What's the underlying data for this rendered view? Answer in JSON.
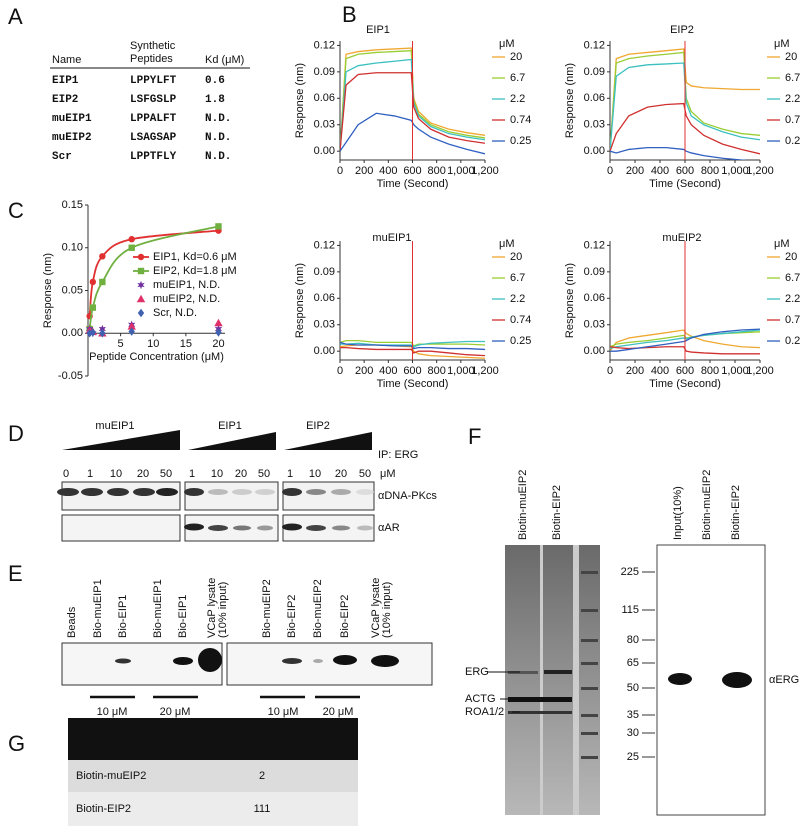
{
  "panel_labels": [
    "A",
    "B",
    "C",
    "D",
    "E",
    "F",
    "G"
  ],
  "table_a": {
    "header": [
      "Name",
      [
        "Synthetic",
        "Peptides"
      ],
      "Kd (μM)"
    ],
    "rows": [
      [
        "EIP1",
        "LPPYLFT",
        "0.6"
      ],
      [
        "EIP2",
        "LSFGSLP",
        "1.8"
      ],
      [
        "muEIP1",
        "LPPALFT",
        "N.D."
      ],
      [
        "muEIP2",
        "LSAGSAP",
        "N.D."
      ],
      [
        "Scr",
        "LPPTFLY",
        "N.D."
      ]
    ],
    "row_colors": [
      "#7030a0",
      "#e0203a",
      "#111111",
      "#111111",
      "#111111"
    ]
  },
  "chart_data": [
    {
      "type": "line",
      "title": "EIP1",
      "xlabel": "Time (Second)",
      "ylabel": "Response (nm)",
      "legend_title": "μM",
      "x": [
        0,
        50,
        150,
        300,
        450,
        590,
        610,
        650,
        750,
        900,
        1050,
        1200
      ],
      "xlim": [
        0,
        1200
      ],
      "xticks": [
        0,
        200,
        400,
        600,
        800,
        {
          "value": 1000,
          "label": "1,000"
        },
        {
          "value": 1200,
          "label": "1,200"
        }
      ],
      "ylim": [
        -0.01,
        0.125
      ],
      "yticks": [
        {
          "value": 0,
          "label": "0.00"
        },
        0.03,
        0.06,
        0.09,
        0.12
      ],
      "vline": 600,
      "vline_color": "#e03030",
      "series": [
        {
          "name": "20",
          "color": "#f0a830",
          "values": [
            0,
            0.11,
            0.113,
            0.115,
            0.116,
            0.117,
            0.06,
            0.045,
            0.032,
            0.025,
            0.021,
            0.018
          ]
        },
        {
          "name": "6.7",
          "color": "#9acd32",
          "values": [
            0,
            0.105,
            0.11,
            0.112,
            0.113,
            0.114,
            0.058,
            0.042,
            0.03,
            0.022,
            0.018,
            0.015
          ]
        },
        {
          "name": "2.2",
          "color": "#3cc0c0",
          "values": [
            0,
            0.09,
            0.097,
            0.1,
            0.102,
            0.104,
            0.055,
            0.04,
            0.028,
            0.02,
            0.016,
            0.013
          ]
        },
        {
          "name": "0.74",
          "color": "#d03030",
          "values": [
            0,
            0.075,
            0.087,
            0.089,
            0.089,
            0.089,
            0.05,
            0.037,
            0.025,
            0.016,
            0.012,
            0.009
          ]
        },
        {
          "name": "0.25",
          "color": "#3060c0",
          "values": [
            0,
            0.01,
            0.03,
            0.043,
            0.04,
            0.035,
            0.03,
            0.025,
            0.016,
            0.008,
            0.002,
            -0.003
          ]
        }
      ]
    },
    {
      "type": "line",
      "title": "EIP2",
      "xlabel": "Time (Second)",
      "ylabel": "Response (nm)",
      "legend_title": "μM",
      "x": [
        0,
        50,
        150,
        300,
        450,
        590,
        610,
        650,
        750,
        900,
        1050,
        1200
      ],
      "xlim": [
        0,
        1200
      ],
      "xticks": [
        0,
        200,
        400,
        600,
        800,
        {
          "value": 1000,
          "label": "1,000"
        },
        {
          "value": 1200,
          "label": "1,200"
        }
      ],
      "ylim": [
        -0.01,
        0.125
      ],
      "yticks": [
        {
          "value": 0,
          "label": "0.00"
        },
        0.03,
        0.06,
        0.09,
        0.12
      ],
      "vline": 600,
      "vline_color": "#e03030",
      "series": [
        {
          "name": "20",
          "color": "#f0a830",
          "values": [
            0,
            0.105,
            0.11,
            0.112,
            0.114,
            0.116,
            0.078,
            0.074,
            0.072,
            0.071,
            0.07,
            0.07
          ]
        },
        {
          "name": "6.7",
          "color": "#9acd32",
          "values": [
            0,
            0.1,
            0.105,
            0.108,
            0.11,
            0.112,
            0.06,
            0.045,
            0.032,
            0.025,
            0.02,
            0.018
          ]
        },
        {
          "name": "2.2",
          "color": "#3cc0c0",
          "values": [
            0,
            0.085,
            0.095,
            0.098,
            0.099,
            0.1,
            0.055,
            0.04,
            0.03,
            0.022,
            0.016,
            0.013
          ]
        },
        {
          "name": "0.74",
          "color": "#d03030",
          "values": [
            0,
            0.02,
            0.04,
            0.05,
            0.053,
            0.054,
            0.04,
            0.03,
            0.018,
            0.008,
            0.002,
            -0.003
          ]
        },
        {
          "name": "0.25",
          "color": "#3060c0",
          "values": [
            0,
            -0.002,
            0.002,
            0.004,
            0.004,
            0.002,
            0,
            -0.002,
            -0.005,
            -0.008,
            -0.01,
            -0.012
          ]
        }
      ]
    },
    {
      "type": "line",
      "title": "muEIP1",
      "xlabel": "Time (Second)",
      "ylabel": "Response (nm)",
      "legend_title": "μM",
      "x": [
        0,
        50,
        150,
        300,
        450,
        590,
        610,
        650,
        750,
        900,
        1050,
        1200
      ],
      "xlim": [
        0,
        1200
      ],
      "xticks": [
        0,
        200,
        400,
        600,
        800,
        {
          "value": 1000,
          "label": "1,000"
        },
        {
          "value": 1200,
          "label": "1,200"
        }
      ],
      "ylim": [
        -0.01,
        0.125
      ],
      "yticks": [
        {
          "value": 0,
          "label": "0.00"
        },
        0.03,
        0.06,
        0.09,
        0.12
      ],
      "vline": 600,
      "vline_color": "#e03030",
      "series": [
        {
          "name": "20",
          "color": "#f0a830",
          "values": [
            0.005,
            0.006,
            0.007,
            0.007,
            0.006,
            0.005,
            0,
            -0.003,
            -0.005,
            -0.006,
            -0.007,
            -0.008
          ]
        },
        {
          "name": "6.7",
          "color": "#9acd32",
          "values": [
            0.01,
            0.012,
            0.012,
            0.01,
            0.01,
            0.01,
            0.006,
            0.008,
            0.008,
            0.008,
            0.008,
            0.007
          ]
        },
        {
          "name": "2.2",
          "color": "#3cc0c0",
          "values": [
            0.008,
            0.008,
            0.009,
            0.007,
            0.007,
            0.007,
            0.005,
            0.007,
            0.009,
            0.01,
            0.011,
            0.011
          ]
        },
        {
          "name": "0.74",
          "color": "#d03030",
          "values": [
            0.004,
            0.004,
            0.003,
            0.002,
            0.002,
            0.002,
            -0.002,
            0,
            0,
            -0.002,
            -0.004,
            -0.005
          ]
        },
        {
          "name": "0.25",
          "color": "#3060c0",
          "values": [
            0.01,
            0.008,
            0.007,
            0.007,
            0.006,
            0.006,
            0.003,
            0.004,
            0.004,
            0.003,
            0.003,
            0.002
          ]
        }
      ]
    },
    {
      "type": "line",
      "title": "muEIP2",
      "xlabel": "Time (Second)",
      "ylabel": "Response (nm)",
      "legend_title": "μM",
      "x": [
        0,
        50,
        150,
        300,
        450,
        590,
        610,
        650,
        750,
        900,
        1050,
        1200
      ],
      "xlim": [
        0,
        1200
      ],
      "xticks": [
        0,
        200,
        400,
        600,
        800,
        {
          "value": 1000,
          "label": "1,000"
        },
        {
          "value": 1200,
          "label": "1,200"
        }
      ],
      "ylim": [
        -0.01,
        0.125
      ],
      "yticks": [
        {
          "value": 0,
          "label": "0.00"
        },
        0.03,
        0.06,
        0.09,
        0.12
      ],
      "vline": 600,
      "vline_color": "#e03030",
      "series": [
        {
          "name": "20",
          "color": "#f0a830",
          "values": [
            0,
            0.01,
            0.015,
            0.018,
            0.021,
            0.024,
            0.02,
            0.017,
            0.012,
            0.008,
            0.005,
            0.004
          ]
        },
        {
          "name": "6.7",
          "color": "#9acd32",
          "values": [
            0.005,
            0.008,
            0.01,
            0.012,
            0.015,
            0.018,
            0.015,
            0.016,
            0.018,
            0.02,
            0.021,
            0.022
          ]
        },
        {
          "name": "2.2",
          "color": "#3cc0c0",
          "values": [
            0.003,
            0.005,
            0.007,
            0.01,
            0.012,
            0.015,
            0.014,
            0.016,
            0.018,
            0.02,
            0.022,
            0.024
          ]
        },
        {
          "name": "0.74",
          "color": "#d03030",
          "values": [
            0.005,
            0.004,
            0.003,
            0.004,
            0.005,
            0.005,
            0,
            -0.001,
            -0.002,
            -0.003,
            -0.003,
            -0.003
          ]
        },
        {
          "name": "0.25",
          "color": "#3060c0",
          "values": [
            0,
            0,
            0.002,
            0.005,
            0.008,
            0.011,
            0.012,
            0.015,
            0.019,
            0.022,
            0.024,
            0.025
          ]
        }
      ]
    },
    {
      "type": "scatter",
      "xlabel": "Peptide Concentration (μM)",
      "ylabel": "Response (nm)",
      "x": [
        0.25,
        0.74,
        2.2,
        6.7,
        20
      ],
      "xlim": [
        0,
        21
      ],
      "xticks": [
        5,
        10,
        15,
        20
      ],
      "ylim": [
        -0.05,
        0.15
      ],
      "yticks": [
        -0.05,
        {
          "value": 0,
          "label": "0.00"
        },
        0.05,
        {
          "value": 0.1,
          "label": "0.10"
        },
        0.15
      ],
      "series": [
        {
          "name": "EIP1, Kd=0.6 μM",
          "color": "#e03030",
          "marker": "circle",
          "line": true,
          "values": [
            0.02,
            0.06,
            0.09,
            0.11,
            0.12
          ]
        },
        {
          "name": "EIP2, Kd=1.8 μM",
          "color": "#70b040",
          "marker": "square",
          "line": true,
          "values": [
            0.005,
            0.03,
            0.06,
            0.1,
            0.125
          ]
        },
        {
          "name": "muEIP1, N.D.",
          "color": "#7030a0",
          "marker": "star",
          "line": false,
          "values": [
            0.005,
            0,
            0.005,
            0.01,
            0.005
          ]
        },
        {
          "name": "muEIP2, N.D.",
          "color": "#e0306a",
          "marker": "triangle",
          "line": false,
          "values": [
            0.003,
            0.002,
            0,
            0.008,
            0.012
          ]
        },
        {
          "name": "Scr, N.D.",
          "color": "#4060b0",
          "marker": "diamond",
          "line": false,
          "values": [
            0,
            0.001,
            0,
            0.002,
            0.001
          ]
        }
      ]
    }
  ],
  "panel_d": {
    "groups": [
      "muEIP1",
      "EIP1",
      "EIP2"
    ],
    "concentrations": [
      [
        0,
        1,
        10,
        20,
        50
      ],
      [
        1,
        10,
        20,
        50
      ],
      [
        1,
        10,
        20,
        50
      ]
    ],
    "unit": "μM",
    "ip": "IP: ERG",
    "antibodies": [
      "αDNA-PKcs",
      "αAR"
    ]
  },
  "panel_e": {
    "lanes": [
      [
        "Beads"
      ],
      [
        "Bio-muEIP1"
      ],
      [
        "Bio-EIP1"
      ],
      [
        "Bio-muEIP1"
      ],
      [
        "Bio-EIP1"
      ],
      [
        "VCaP lysate",
        "(10% input)"
      ],
      [
        "Bio-muEIP2"
      ],
      [
        "Bio-EIP2"
      ],
      [
        "Bio-muEIP2"
      ],
      [
        "Bio-EIP2"
      ],
      [
        "VCaP lysate",
        "(10% input)"
      ]
    ],
    "concentrations": [
      "10 μM",
      "20 μM",
      "10 μM",
      "20 μM"
    ]
  },
  "panel_f": {
    "gel_lanes": [
      "Biotin-muEIP2",
      "Biotin-EIP2"
    ],
    "markers": [
      225,
      115,
      80,
      65,
      50,
      35,
      30,
      25
    ],
    "proteins": [
      "ERG",
      "ACTG",
      "ROA1/2"
    ],
    "blot_lanes": [
      "Input(10%)",
      "Biotin-muEIP2",
      "Biotin-EIP2"
    ],
    "antibody": "αERG"
  },
  "panel_g": {
    "rows": [
      [
        "Biotin-muEIP2",
        "2"
      ],
      [
        "Biotin-EIP2",
        "111"
      ]
    ]
  }
}
